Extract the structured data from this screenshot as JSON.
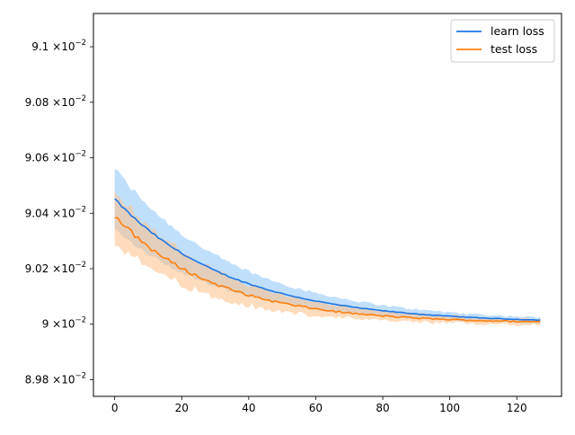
{
  "chart_data": {
    "type": "line",
    "title": "",
    "xlabel": "",
    "ylabel": "",
    "xlim": [
      -6.35,
      133.35
    ],
    "ylim": [
      0.08974,
      0.09112
    ],
    "x_ticks": [
      0,
      20,
      40,
      60,
      80,
      100,
      120
    ],
    "x_tick_labels": [
      "0",
      "20",
      "40",
      "60",
      "80",
      "100",
      "120"
    ],
    "y_ticks": [
      0.0898,
      0.09,
      0.0902,
      0.0904,
      0.0906,
      0.0908,
      0.091
    ],
    "y_tick_labels": [
      {
        "mant": "8.98",
        "exp": "−2"
      },
      {
        "mant": "9",
        "exp": "−2"
      },
      {
        "mant": "9.02",
        "exp": "−2"
      },
      {
        "mant": "9.04",
        "exp": "−2"
      },
      {
        "mant": "9.06",
        "exp": "−2"
      },
      {
        "mant": "9.08",
        "exp": "−2"
      },
      {
        "mant": "9.1",
        "exp": "−2"
      }
    ],
    "y_tick_times": "×10",
    "x_count": 128,
    "grid": false,
    "legend": "upper right",
    "series": [
      {
        "name": "learn loss",
        "color": "#1f77e6",
        "band_color": "#8cc4f8",
        "mean_start": 0.090451,
        "mean_end": 0.090003,
        "decay": 35,
        "band_halfwidth_start": 0.000111,
        "band_halfwidth_end": 5.5e-06,
        "noise": 6e-06,
        "band_noise": 1.5e-05
      },
      {
        "name": "test loss",
        "color": "#ff7f0e",
        "band_color": "#ffbf86",
        "mean_start": 0.09039,
        "mean_end": 0.090003,
        "decay": 30,
        "band_halfwidth_start": 9.5e-05,
        "band_halfwidth_end": 5.5e-06,
        "noise": 1.5e-05,
        "band_noise": 2.5e-05
      }
    ]
  }
}
